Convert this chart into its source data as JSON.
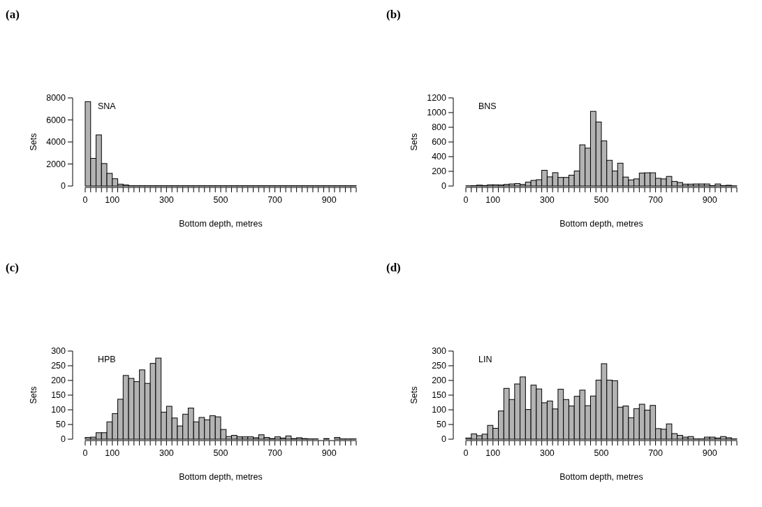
{
  "chart_data": [
    {
      "type": "histogram",
      "title": "(a)",
      "xlabel": "Bottom depth, metres",
      "ylabel": "Sets",
      "annotations": [
        "SNA"
      ],
      "color": "#b3b3b3",
      "bins": [
        0,
        20,
        40,
        60,
        80,
        100,
        120,
        140,
        160,
        180,
        200,
        220,
        240,
        260,
        280,
        300,
        320,
        340,
        360,
        380,
        400,
        420,
        440,
        460,
        480,
        500,
        520,
        540,
        560,
        580,
        600,
        620,
        640,
        660,
        680,
        700,
        720,
        740,
        760,
        780,
        800,
        820,
        840,
        860,
        880,
        900,
        920,
        940,
        960,
        980,
        1000
      ],
      "values": [
        7660,
        2510,
        4640,
        2040,
        1150,
        660,
        170,
        100,
        30,
        30,
        30,
        30,
        30,
        30,
        30,
        30,
        30,
        30,
        30,
        30,
        30,
        30,
        30,
        30,
        30,
        30,
        30,
        30,
        30,
        30,
        30,
        30,
        30,
        30,
        30,
        30,
        30,
        30,
        30,
        30,
        30,
        30,
        30,
        30,
        30,
        30,
        30,
        30,
        30,
        30
      ],
      "xlim": [
        0,
        1000
      ],
      "xticks": [
        0,
        {
          "value": 20,
          "label": null
        },
        {
          "value": 40,
          "label": null
        },
        {
          "value": 60,
          "label": null
        },
        {
          "value": 80,
          "label": null
        },
        100,
        {
          "value": 120,
          "label": null
        },
        {
          "value": 140,
          "label": null
        },
        {
          "value": 160,
          "label": null
        },
        {
          "value": 180,
          "label": null
        },
        {
          "value": 200,
          "label": null
        },
        {
          "value": 220,
          "label": null
        },
        {
          "value": 240,
          "label": null
        },
        {
          "value": 260,
          "label": null
        },
        {
          "value": 280,
          "label": null
        },
        300,
        {
          "value": 320,
          "label": null
        },
        {
          "value": 340,
          "label": null
        },
        {
          "value": 360,
          "label": null
        },
        {
          "value": 380,
          "label": null
        },
        {
          "value": 400,
          "label": null
        },
        {
          "value": 420,
          "label": null
        },
        {
          "value": 440,
          "label": null
        },
        {
          "value": 460,
          "label": null
        },
        {
          "value": 480,
          "label": null
        },
        500,
        {
          "value": 520,
          "label": null
        },
        {
          "value": 540,
          "label": null
        },
        {
          "value": 560,
          "label": null
        },
        {
          "value": 580,
          "label": null
        },
        {
          "value": 600,
          "label": null
        },
        {
          "value": 620,
          "label": null
        },
        {
          "value": 640,
          "label": null
        },
        {
          "value": 660,
          "label": null
        },
        {
          "value": 680,
          "label": null
        },
        700,
        {
          "value": 720,
          "label": null
        },
        {
          "value": 740,
          "label": null
        },
        {
          "value": 760,
          "label": null
        },
        {
          "value": 780,
          "label": null
        },
        {
          "value": 800,
          "label": null
        },
        {
          "value": 820,
          "label": null
        },
        {
          "value": 840,
          "label": null
        },
        {
          "value": 860,
          "label": null
        },
        {
          "value": 880,
          "label": null
        },
        900,
        {
          "value": 920,
          "label": null
        },
        {
          "value": 940,
          "label": null
        },
        {
          "value": 960,
          "label": null
        },
        {
          "value": 980,
          "label": null
        },
        {
          "value": 1000,
          "label": null
        }
      ],
      "ylim": [
        0,
        8000
      ],
      "yticks": [
        0,
        2000,
        4000,
        6000,
        8000
      ]
    },
    {
      "type": "histogram",
      "title": "(b)",
      "xlabel": "Bottom depth, metres",
      "ylabel": "Sets",
      "annotations": [
        "BNS"
      ],
      "color": "#b3b3b3",
      "bins": [
        0,
        20,
        40,
        60,
        80,
        100,
        120,
        140,
        160,
        180,
        200,
        220,
        240,
        260,
        280,
        300,
        320,
        340,
        360,
        380,
        400,
        420,
        440,
        460,
        480,
        500,
        520,
        540,
        560,
        580,
        600,
        620,
        640,
        660,
        680,
        700,
        720,
        740,
        760,
        780,
        800,
        820,
        840,
        860,
        880,
        900,
        920,
        940,
        960,
        980,
        1000
      ],
      "values": [
        3,
        5,
        12,
        7,
        17,
        17,
        14,
        22,
        28,
        34,
        22,
        54,
        77,
        86,
        214,
        125,
        182,
        117,
        117,
        148,
        205,
        561,
        516,
        1017,
        872,
        615,
        350,
        205,
        311,
        122,
        83,
        97,
        177,
        180,
        180,
        105,
        97,
        131,
        63,
        48,
        26,
        26,
        28,
        28,
        28,
        6,
        28,
        6,
        10,
        3
      ],
      "xlim": [
        0,
        1000
      ],
      "xticks": [
        0,
        {
          "value": 20,
          "label": null
        },
        {
          "value": 40,
          "label": null
        },
        {
          "value": 60,
          "label": null
        },
        {
          "value": 80,
          "label": null
        },
        100,
        {
          "value": 120,
          "label": null
        },
        {
          "value": 140,
          "label": null
        },
        {
          "value": 160,
          "label": null
        },
        {
          "value": 180,
          "label": null
        },
        {
          "value": 200,
          "label": null
        },
        {
          "value": 220,
          "label": null
        },
        {
          "value": 240,
          "label": null
        },
        {
          "value": 260,
          "label": null
        },
        {
          "value": 280,
          "label": null
        },
        300,
        {
          "value": 320,
          "label": null
        },
        {
          "value": 340,
          "label": null
        },
        {
          "value": 360,
          "label": null
        },
        {
          "value": 380,
          "label": null
        },
        {
          "value": 400,
          "label": null
        },
        {
          "value": 420,
          "label": null
        },
        {
          "value": 440,
          "label": null
        },
        {
          "value": 460,
          "label": null
        },
        {
          "value": 480,
          "label": null
        },
        500,
        {
          "value": 520,
          "label": null
        },
        {
          "value": 540,
          "label": null
        },
        {
          "value": 560,
          "label": null
        },
        {
          "value": 580,
          "label": null
        },
        {
          "value": 600,
          "label": null
        },
        {
          "value": 620,
          "label": null
        },
        {
          "value": 640,
          "label": null
        },
        {
          "value": 660,
          "label": null
        },
        {
          "value": 680,
          "label": null
        },
        700,
        {
          "value": 720,
          "label": null
        },
        {
          "value": 740,
          "label": null
        },
        {
          "value": 760,
          "label": null
        },
        {
          "value": 780,
          "label": null
        },
        {
          "value": 800,
          "label": null
        },
        {
          "value": 820,
          "label": null
        },
        {
          "value": 840,
          "label": null
        },
        {
          "value": 860,
          "label": null
        },
        {
          "value": 880,
          "label": null
        },
        900,
        {
          "value": 920,
          "label": null
        },
        {
          "value": 940,
          "label": null
        },
        {
          "value": 960,
          "label": null
        },
        {
          "value": 980,
          "label": null
        },
        {
          "value": 1000,
          "label": null
        }
      ],
      "ylim": [
        0,
        1200
      ],
      "yticks": [
        0,
        200,
        400,
        600,
        800,
        1000,
        1200
      ]
    },
    {
      "type": "histogram",
      "title": "(c)",
      "xlabel": "Bottom depth, metres",
      "ylabel": "Sets",
      "annotations": [
        "HPB"
      ],
      "color": "#b3b3b3",
      "bins": [
        0,
        20,
        40,
        60,
        80,
        100,
        120,
        140,
        160,
        180,
        200,
        220,
        240,
        260,
        280,
        300,
        320,
        340,
        360,
        380,
        400,
        420,
        440,
        460,
        480,
        500,
        520,
        540,
        560,
        580,
        600,
        620,
        640,
        660,
        680,
        700,
        720,
        740,
        760,
        780,
        800,
        820,
        840,
        860,
        880,
        900,
        920,
        940,
        960,
        980,
        1000
      ],
      "values": [
        6,
        7,
        22,
        22,
        59,
        87,
        136,
        217,
        207,
        196,
        236,
        190,
        258,
        276,
        92,
        112,
        72,
        45,
        85,
        106,
        59,
        74,
        66,
        80,
        76,
        33,
        9,
        13,
        8,
        8,
        8,
        5,
        15,
        6,
        2,
        8,
        4,
        11,
        2,
        5,
        2,
        1,
        1,
        0,
        2,
        0,
        6,
        1,
        1,
        1
      ],
      "xlim": [
        0,
        1000
      ],
      "xticks": [
        0,
        {
          "value": 20,
          "label": null
        },
        {
          "value": 40,
          "label": null
        },
        {
          "value": 60,
          "label": null
        },
        {
          "value": 80,
          "label": null
        },
        100,
        {
          "value": 120,
          "label": null
        },
        {
          "value": 140,
          "label": null
        },
        {
          "value": 160,
          "label": null
        },
        {
          "value": 180,
          "label": null
        },
        {
          "value": 200,
          "label": null
        },
        {
          "value": 220,
          "label": null
        },
        {
          "value": 240,
          "label": null
        },
        {
          "value": 260,
          "label": null
        },
        {
          "value": 280,
          "label": null
        },
        300,
        {
          "value": 320,
          "label": null
        },
        {
          "value": 340,
          "label": null
        },
        {
          "value": 360,
          "label": null
        },
        {
          "value": 380,
          "label": null
        },
        {
          "value": 400,
          "label": null
        },
        {
          "value": 420,
          "label": null
        },
        {
          "value": 440,
          "label": null
        },
        {
          "value": 460,
          "label": null
        },
        {
          "value": 480,
          "label": null
        },
        500,
        {
          "value": 520,
          "label": null
        },
        {
          "value": 540,
          "label": null
        },
        {
          "value": 560,
          "label": null
        },
        {
          "value": 580,
          "label": null
        },
        {
          "value": 600,
          "label": null
        },
        {
          "value": 620,
          "label": null
        },
        {
          "value": 640,
          "label": null
        },
        {
          "value": 660,
          "label": null
        },
        {
          "value": 680,
          "label": null
        },
        700,
        {
          "value": 720,
          "label": null
        },
        {
          "value": 740,
          "label": null
        },
        {
          "value": 760,
          "label": null
        },
        {
          "value": 780,
          "label": null
        },
        {
          "value": 800,
          "label": null
        },
        {
          "value": 820,
          "label": null
        },
        {
          "value": 840,
          "label": null
        },
        {
          "value": 860,
          "label": null
        },
        {
          "value": 880,
          "label": null
        },
        900,
        {
          "value": 920,
          "label": null
        },
        {
          "value": 940,
          "label": null
        },
        {
          "value": 960,
          "label": null
        },
        {
          "value": 980,
          "label": null
        },
        {
          "value": 1000,
          "label": null
        }
      ],
      "ylim": [
        0,
        300
      ],
      "yticks": [
        0,
        50,
        100,
        150,
        200,
        250,
        300
      ]
    },
    {
      "type": "histogram",
      "title": "(d)",
      "xlabel": "Bottom depth, metres",
      "ylabel": "Sets",
      "annotations": [
        "LIN"
      ],
      "color": "#b3b3b3",
      "bins": [
        0,
        20,
        40,
        60,
        80,
        100,
        120,
        140,
        160,
        180,
        200,
        220,
        240,
        260,
        280,
        300,
        320,
        340,
        360,
        380,
        400,
        420,
        440,
        460,
        480,
        500,
        520,
        540,
        560,
        580,
        600,
        620,
        640,
        660,
        680,
        700,
        720,
        740,
        760,
        780,
        800,
        820,
        840,
        860,
        880,
        900,
        920,
        940,
        960,
        980,
        1000
      ],
      "values": [
        4,
        18,
        12,
        17,
        47,
        37,
        96,
        173,
        135,
        188,
        212,
        101,
        184,
        171,
        124,
        130,
        103,
        170,
        135,
        113,
        146,
        167,
        114,
        147,
        201,
        257,
        201,
        199,
        109,
        113,
        73,
        104,
        119,
        99,
        115,
        36,
        34,
        52,
        19,
        13,
        7,
        9,
        1,
        1,
        7,
        7,
        4,
        9,
        5,
        1
      ],
      "xlim": [
        0,
        1000
      ],
      "xticks": [
        0,
        {
          "value": 20,
          "label": null
        },
        {
          "value": 40,
          "label": null
        },
        {
          "value": 60,
          "label": null
        },
        {
          "value": 80,
          "label": null
        },
        100,
        {
          "value": 120,
          "label": null
        },
        {
          "value": 140,
          "label": null
        },
        {
          "value": 160,
          "label": null
        },
        {
          "value": 180,
          "label": null
        },
        {
          "value": 200,
          "label": null
        },
        {
          "value": 220,
          "label": null
        },
        {
          "value": 240,
          "label": null
        },
        {
          "value": 260,
          "label": null
        },
        {
          "value": 280,
          "label": null
        },
        300,
        {
          "value": 320,
          "label": null
        },
        {
          "value": 340,
          "label": null
        },
        {
          "value": 360,
          "label": null
        },
        {
          "value": 380,
          "label": null
        },
        {
          "value": 400,
          "label": null
        },
        {
          "value": 420,
          "label": null
        },
        {
          "value": 440,
          "label": null
        },
        {
          "value": 460,
          "label": null
        },
        {
          "value": 480,
          "label": null
        },
        500,
        {
          "value": 520,
          "label": null
        },
        {
          "value": 540,
          "label": null
        },
        {
          "value": 560,
          "label": null
        },
        {
          "value": 580,
          "label": null
        },
        {
          "value": 600,
          "label": null
        },
        {
          "value": 620,
          "label": null
        },
        {
          "value": 640,
          "label": null
        },
        {
          "value": 660,
          "label": null
        },
        {
          "value": 680,
          "label": null
        },
        700,
        {
          "value": 720,
          "label": null
        },
        {
          "value": 740,
          "label": null
        },
        {
          "value": 760,
          "label": null
        },
        {
          "value": 780,
          "label": null
        },
        {
          "value": 800,
          "label": null
        },
        {
          "value": 820,
          "label": null
        },
        {
          "value": 840,
          "label": null
        },
        {
          "value": 860,
          "label": null
        },
        {
          "value": 880,
          "label": null
        },
        900,
        {
          "value": 920,
          "label": null
        },
        {
          "value": 940,
          "label": null
        },
        {
          "value": 960,
          "label": null
        },
        {
          "value": 980,
          "label": null
        },
        {
          "value": 1000,
          "label": null
        }
      ],
      "ylim": [
        0,
        300
      ],
      "yticks": [
        0,
        50,
        100,
        150,
        200,
        250,
        300
      ]
    }
  ]
}
